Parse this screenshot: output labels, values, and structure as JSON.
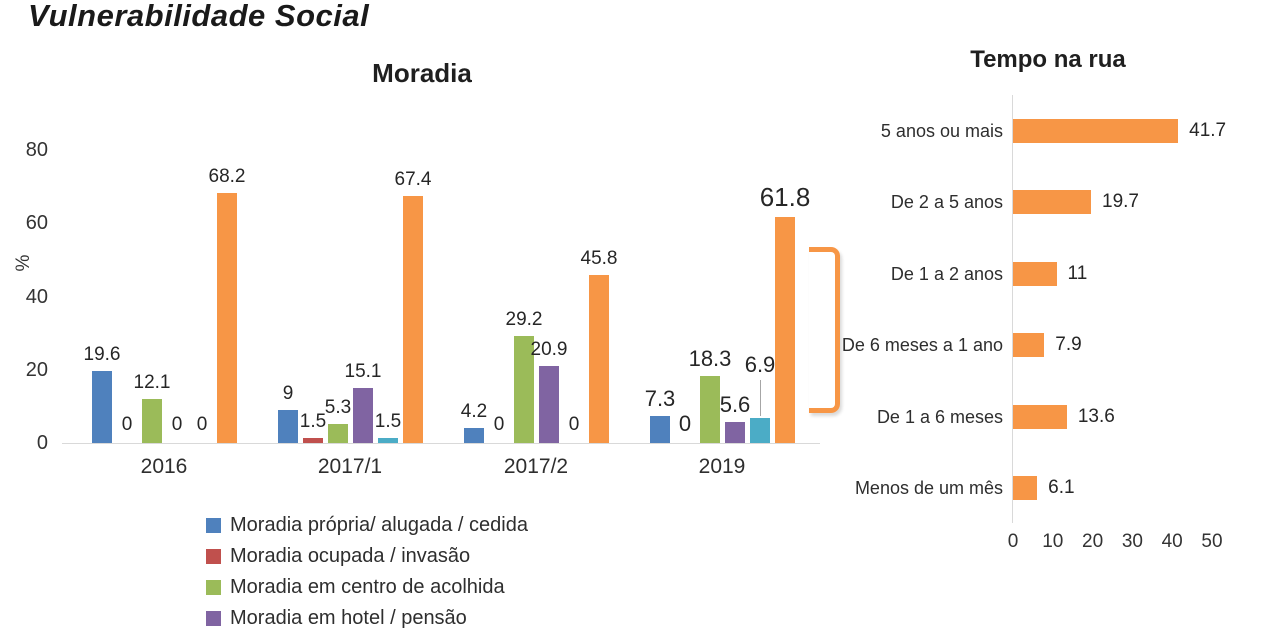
{
  "slide": {
    "title": "Vulnerabilidade Social"
  },
  "colors": {
    "orange": "#F79646",
    "axis_line": "#D9D9D9",
    "leader_line": "#A6A6A6",
    "text": "#2e2e2e",
    "title_text": "#1f1f1f"
  },
  "chart_data": [
    {
      "type": "bar",
      "orientation": "vertical",
      "title": "Moradia",
      "ylabel": "%",
      "ylim": [
        0,
        80
      ],
      "yticks": [
        0,
        20,
        40,
        60,
        80
      ],
      "grid": false,
      "data_labels": true,
      "legend_position": "bottom-left",
      "categories": [
        "2016",
        "2017/1",
        "2017/2",
        "2019"
      ],
      "series": [
        {
          "name": "Moradia própria/ alugada / cedida",
          "color": "#4F81BD",
          "in_legend": true,
          "values": [
            19.6,
            9,
            4.2,
            7.3
          ]
        },
        {
          "name": "Moradia ocupada / invasão",
          "color": "#C0504D",
          "in_legend": true,
          "values": [
            0,
            1.5,
            0,
            0
          ]
        },
        {
          "name": "Moradia em centro de acolhida",
          "color": "#9BBB59",
          "in_legend": true,
          "values": [
            12.1,
            5.3,
            29.2,
            18.3
          ]
        },
        {
          "name": "Moradia em hotel / pensão",
          "color": "#8064A2",
          "in_legend": true,
          "values": [
            0,
            15.1,
            20.9,
            5.6
          ]
        },
        {
          "name": "",
          "color": "#4BACC6",
          "in_legend": false,
          "values": [
            0,
            1.5,
            0,
            6.9
          ]
        },
        {
          "name": "",
          "color": "#F79646",
          "in_legend": false,
          "values": [
            68.2,
            67.4,
            45.8,
            61.8
          ]
        }
      ],
      "emphasized_category": "2019",
      "emphasized_value_label": "61.8",
      "leader_label": {
        "series_index": 4,
        "category_index": 3
      },
      "annotation_bracket": {
        "color": "#F79646",
        "near_category": "2019"
      }
    },
    {
      "type": "bar",
      "orientation": "horizontal",
      "title": "Tempo na rua",
      "bar_color": "#F79646",
      "xlim": [
        0,
        50
      ],
      "xticks": [
        0,
        10,
        20,
        30,
        40,
        50
      ],
      "grid": false,
      "data_labels": true,
      "categories": [
        "5 anos ou mais",
        "De 2 a 5 anos",
        "De 1 a 2 anos",
        "De 6 meses a 1 ano",
        "De 1 a 6 meses",
        "Menos de um mês"
      ],
      "values": [
        41.7,
        19.7,
        11,
        7.9,
        13.6,
        6.1
      ]
    }
  ]
}
